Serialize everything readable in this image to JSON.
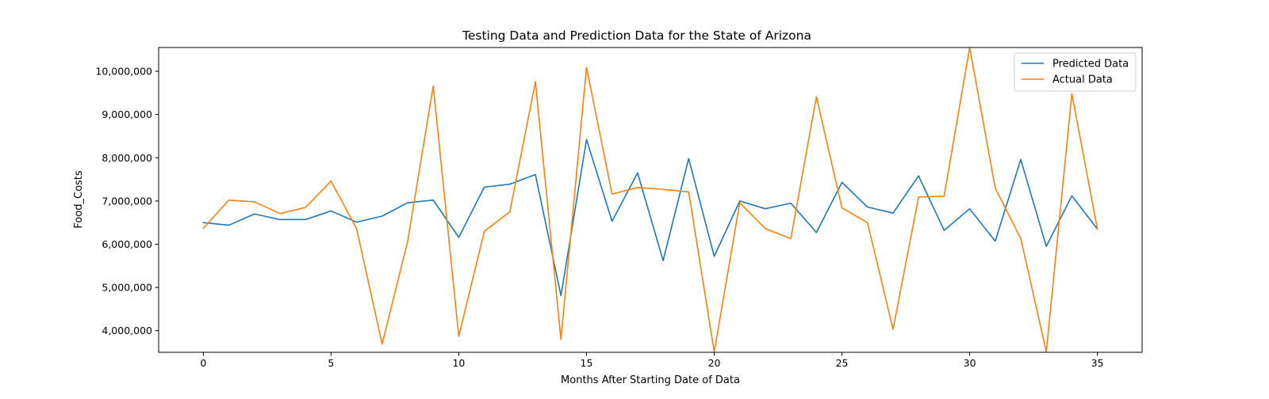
{
  "chart_data": {
    "type": "line",
    "title": "Testing Data and Prediction Data for the State of Arizona",
    "xlabel": "Months After Starting Date of Data",
    "ylabel": "Food_Costs",
    "xlim": [
      -1.75,
      36.75
    ],
    "ylim": [
      3500000,
      10550000
    ],
    "x_ticks": [
      0,
      5,
      10,
      15,
      20,
      25,
      30,
      35
    ],
    "x_tick_labels": [
      "0",
      "5",
      "10",
      "15",
      "20",
      "25",
      "30",
      "35"
    ],
    "y_ticks": [
      4000000,
      5000000,
      6000000,
      7000000,
      8000000,
      9000000,
      10000000
    ],
    "y_tick_labels": [
      "4,000,000",
      "5,000,000",
      "6,000,000",
      "7,000,000",
      "8,000,000",
      "9,000,000",
      "10,000,000"
    ],
    "grid": false,
    "legend_position": "top-right",
    "x": [
      0,
      1,
      2,
      3,
      4,
      5,
      6,
      7,
      8,
      9,
      10,
      11,
      12,
      13,
      14,
      15,
      16,
      17,
      18,
      19,
      20,
      21,
      22,
      23,
      24,
      25,
      26,
      27,
      28,
      29,
      30,
      31,
      32,
      33,
      34,
      35
    ],
    "series": [
      {
        "name": "Predicted Data",
        "color": "#1f77b4",
        "values": [
          6500000,
          6440000,
          6700000,
          6570000,
          6570000,
          6770000,
          6510000,
          6650000,
          6960000,
          7020000,
          6160000,
          7320000,
          7390000,
          7610000,
          4810000,
          8420000,
          6530000,
          7650000,
          5620000,
          7980000,
          5720000,
          7000000,
          6820000,
          6950000,
          6270000,
          7430000,
          6860000,
          6720000,
          7580000,
          6320000,
          6820000,
          6070000,
          7960000,
          5950000,
          7120000,
          6350000
        ]
      },
      {
        "name": "Actual Data",
        "color": "#ff7f0e",
        "values": [
          6370000,
          7020000,
          6980000,
          6710000,
          6850000,
          7460000,
          6360000,
          3690000,
          6070000,
          9660000,
          3870000,
          6300000,
          6750000,
          9760000,
          3800000,
          10090000,
          7160000,
          7310000,
          7270000,
          7210000,
          3510000,
          6960000,
          6360000,
          6130000,
          9410000,
          6840000,
          6500000,
          4030000,
          7090000,
          7110000,
          10550000,
          7300000,
          6130000,
          3510000,
          9480000,
          6350000
        ]
      }
    ]
  }
}
